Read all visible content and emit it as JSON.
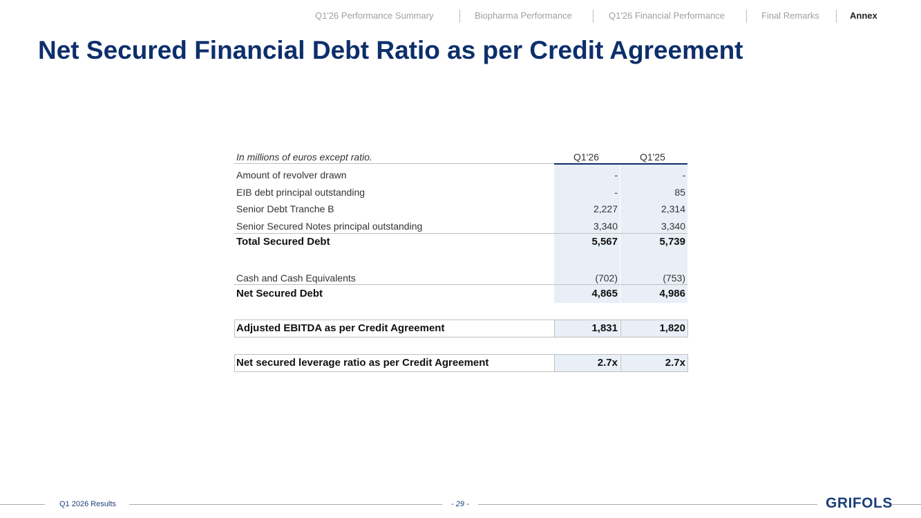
{
  "nav": [
    "Q1'26 Performance Summary",
    "Biopharma Performance",
    "Q1'26 Financial Performance",
    "Final Remarks",
    "Annex"
  ],
  "title": "Net Secured Financial Debt Ratio as per Credit Agreement",
  "table": {
    "header": [
      "In millions of euros except ratio.",
      "Q1'26",
      "Q1'25"
    ],
    "rows": [
      [
        "Amount of revolver drawn",
        "-",
        "-"
      ],
      [
        "EIB debt principal outstanding",
        "-",
        "85"
      ],
      [
        "Senior Debt Tranche B",
        "2,227",
        "2,314"
      ],
      [
        "Senior Secured Notes principal outstanding",
        "3,340",
        "3,340"
      ],
      [
        "Total Secured Debt",
        "5,567",
        "5,739"
      ],
      [
        "Cash and Cash Equivalents",
        "(702)",
        "(753)"
      ],
      [
        "Net Secured Debt",
        "4,865",
        "4,986"
      ],
      [
        "Adjusted EBITDA  as per Credit Agreement",
        "1,831",
        "1,820"
      ],
      [
        "Net secured leverage ratio as per Credit Agreement",
        "2.7x",
        "2.7x"
      ]
    ]
  },
  "footer": {
    "label": "Q1 2026 Results",
    "page": "- 29 -",
    "logo": "GRIFOLS"
  }
}
